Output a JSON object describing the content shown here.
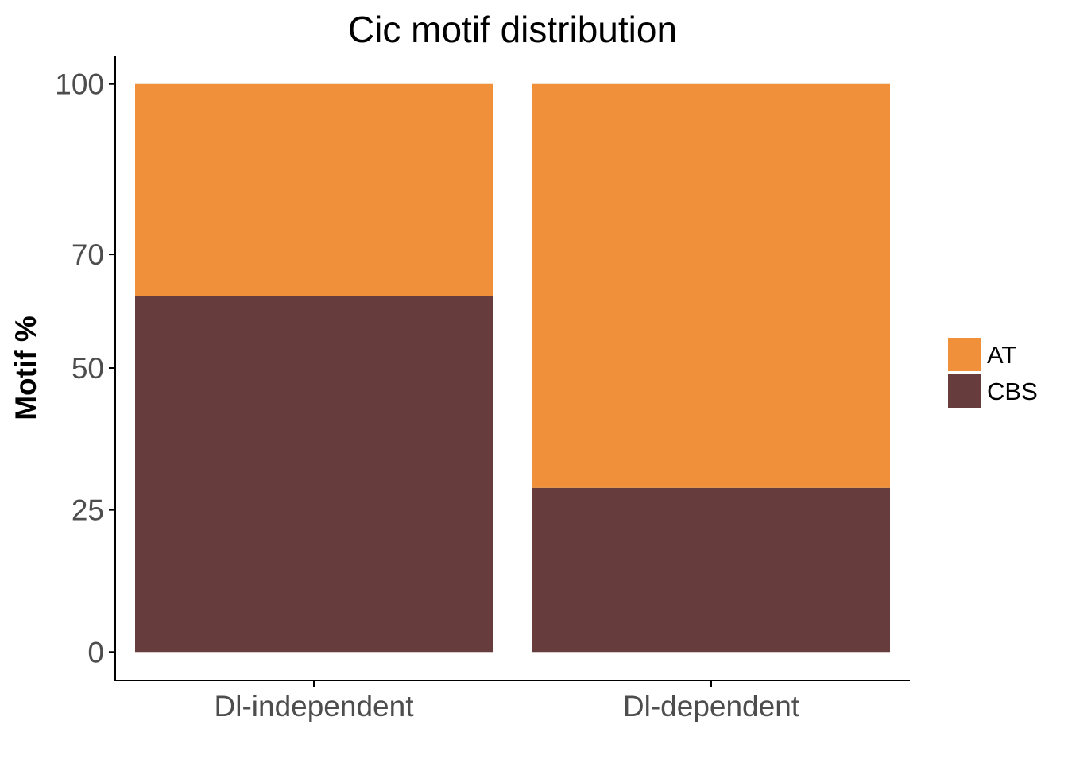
{
  "chart_data": {
    "type": "bar",
    "stacked": true,
    "title": "Cic motif distribution",
    "xlabel": "",
    "ylabel": "Motif %",
    "categories": [
      "Dl-independent",
      "Dl-dependent"
    ],
    "series": [
      {
        "name": "CBS",
        "color": "#663d3c",
        "values": [
          62.6,
          28.9
        ]
      },
      {
        "name": "AT",
        "color": "#f0903a",
        "values": [
          37.4,
          71.1
        ]
      }
    ],
    "ylim": [
      -5,
      105
    ],
    "yticks": [
      0,
      25,
      50,
      70,
      100
    ],
    "ytick_labels": [
      "0",
      "25",
      "50",
      "70",
      "100"
    ],
    "legend": {
      "position": "right",
      "entries": [
        {
          "label": "AT",
          "color": "#f0903a"
        },
        {
          "label": "CBS",
          "color": "#663d3c"
        }
      ]
    },
    "grid": false
  }
}
